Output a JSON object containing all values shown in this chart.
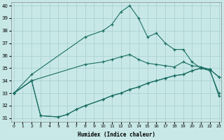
{
  "xlabel": "Humidex (Indice chaleur)",
  "xlim": [
    -0.3,
    23.3
  ],
  "ylim": [
    30.7,
    40.3
  ],
  "yticks": [
    31,
    32,
    33,
    34,
    35,
    36,
    37,
    38,
    39,
    40
  ],
  "xticks": [
    0,
    1,
    2,
    3,
    4,
    5,
    6,
    7,
    8,
    9,
    10,
    11,
    12,
    13,
    14,
    15,
    16,
    17,
    18,
    19,
    20,
    21,
    22,
    23
  ],
  "bg_color": "#c8e8e8",
  "grid_color": "#a8cccc",
  "line_color": "#1a6e62",
  "series": [
    [
      33.0,
      null,
      34.5,
      null,
      null,
      null,
      null,
      null,
      37.5,
      null,
      38.0,
      38.5,
      39.5,
      40.0,
      39.0,
      37.5,
      37.8,
      37.0,
      36.5,
      36.5,
      35.5,
      35.0,
      34.8,
      33.0
    ],
    [
      33.0,
      null,
      34.0,
      null,
      null,
      null,
      null,
      null,
      35.3,
      null,
      35.5,
      35.7,
      35.9,
      36.1,
      35.7,
      35.4,
      35.3,
      35.2,
      35.1,
      35.5,
      35.2,
      35.1,
      34.9,
      34.3
    ],
    [
      33.0,
      null,
      34.0,
      31.2,
      null,
      31.1,
      31.3,
      31.7,
      32.0,
      null,
      32.5,
      32.8,
      33.0,
      33.3,
      33.5,
      33.8,
      34.0,
      34.2,
      34.4,
      34.5,
      34.8,
      35.0,
      34.9,
      34.3
    ],
    [
      33.0,
      null,
      34.0,
      31.2,
      null,
      31.1,
      31.3,
      31.7,
      32.0,
      null,
      32.5,
      32.8,
      33.0,
      33.3,
      33.5,
      33.8,
      34.0,
      34.2,
      34.4,
      34.5,
      34.8,
      35.0,
      34.9,
      32.8
    ]
  ]
}
